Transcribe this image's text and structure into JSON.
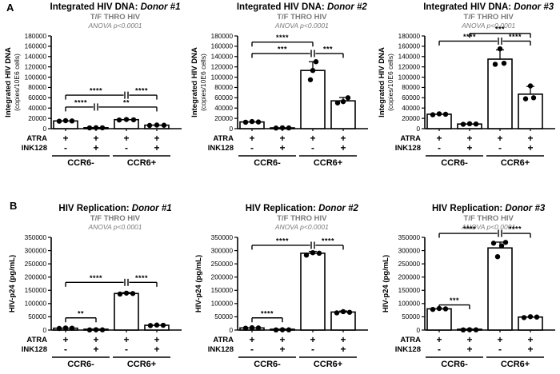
{
  "figure": {
    "panel_letters": {
      "a": "A",
      "b": "B"
    },
    "colors": {
      "bar_fill": "#ffffff",
      "bar_stroke": "#000000",
      "subtitle_gray": "#7a7a7a",
      "point_color": "#000000"
    }
  },
  "chart_data": [
    {
      "type": "bar",
      "panel": "A1",
      "title": "Integrated HIV DNA: ",
      "title_italic": "Donor #1",
      "subtitle": "T/F THRO HIV",
      "annotation": "ANOVA p<0.0001",
      "ylabel_bold": "Integrated HIV DNA",
      "ylabel_sub": "(copies/10E6 cells)",
      "ylim": [
        0,
        180000
      ],
      "ytick_step": 20000,
      "x_rows": [
        {
          "label": "ATRA",
          "values": [
            "+",
            "+",
            "+",
            "+"
          ]
        },
        {
          "label": "INK128",
          "values": [
            "-",
            "+",
            "-",
            "+"
          ]
        }
      ],
      "groups": [
        {
          "label": "CCR6-",
          "from": 0,
          "to": 1
        },
        {
          "label": "CCR6+",
          "from": 2,
          "to": 3
        }
      ],
      "values": [
        15000,
        1800,
        17500,
        6800
      ],
      "errors": [
        0,
        0,
        0,
        0
      ],
      "points": [
        [
          [
            -8,
            14500
          ],
          [
            0,
            15500
          ],
          [
            8,
            15000
          ]
        ],
        [
          [
            -8,
            1500
          ],
          [
            0,
            1900
          ],
          [
            8,
            1700
          ]
        ],
        [
          [
            -9,
            16800
          ],
          [
            0,
            17800
          ],
          [
            9,
            17200
          ]
        ],
        [
          [
            -9,
            6200
          ],
          [
            0,
            7000
          ],
          [
            9,
            6600
          ]
        ]
      ],
      "sig": [
        {
          "v": 65000,
          "segments": [
            {
              "x1": 0,
              "x2": 2,
              "label": "****"
            },
            {
              "x1": 2,
              "x2": 3,
              "label": "****"
            }
          ]
        },
        {
          "v": 42000,
          "segments": [
            {
              "x1": 0,
              "x2": 1,
              "label": "****"
            },
            {
              "x1": 1,
              "x2": 3,
              "label": "**"
            }
          ]
        }
      ]
    },
    {
      "type": "bar",
      "panel": "A2",
      "title": "Integrated HIV DNA: ",
      "title_italic": "Donor #2",
      "subtitle": "T/F THRO HIV",
      "annotation": "ANOVA p<0.0001",
      "ylabel_bold": "Integrated HIV DNA",
      "ylabel_sub": "(copies/10E6 cells)",
      "ylim": [
        0,
        180000
      ],
      "ytick_step": 20000,
      "x_rows": [
        {
          "label": "ATRA",
          "values": [
            "+",
            "+",
            "+",
            "+"
          ]
        },
        {
          "label": "INK128",
          "values": [
            "-",
            "+",
            "-",
            "+"
          ]
        }
      ],
      "groups": [
        {
          "label": "CCR6-",
          "from": 0,
          "to": 1
        },
        {
          "label": "CCR6+",
          "from": 2,
          "to": 3
        }
      ],
      "values": [
        13000,
        1500,
        113000,
        54000
      ],
      "errors": [
        0,
        0,
        17000,
        6500
      ],
      "points": [
        [
          [
            -8,
            12500
          ],
          [
            0,
            13800
          ],
          [
            8,
            13000
          ]
        ],
        [
          [
            -8,
            1200
          ],
          [
            0,
            1700
          ],
          [
            8,
            1400
          ]
        ],
        [
          [
            -3,
            95000
          ],
          [
            0,
            113000
          ],
          [
            4,
            130000
          ]
        ],
        [
          [
            -7,
            50000
          ],
          [
            0,
            52500
          ],
          [
            6,
            60000
          ]
        ]
      ],
      "sig": [
        {
          "v": 168000,
          "segments": [
            {
              "x1": 0,
              "x2": 2,
              "label": "****"
            }
          ]
        },
        {
          "v": 146000,
          "segments": [
            {
              "x1": 0,
              "x2": 2,
              "label": "***"
            },
            {
              "x1": 2,
              "x2": 3,
              "label": "***"
            }
          ]
        }
      ]
    },
    {
      "type": "bar",
      "panel": "A3",
      "title": "Integrated HIV DNA: ",
      "title_italic": "Donor #3",
      "subtitle": "T/F THRO HIV",
      "annotation": "ANOVA p<0.0001",
      "ylabel_bold": "Integrated HIV DNA",
      "ylabel_sub": "(copies/10E6 cells)",
      "ylim": [
        0,
        180000
      ],
      "ytick_step": 20000,
      "x_rows": [
        {
          "label": "ATRA",
          "values": [
            "+",
            "+",
            "+",
            "+"
          ]
        },
        {
          "label": "INK128",
          "values": [
            "-",
            "+",
            "-",
            "+"
          ]
        }
      ],
      "groups": [
        {
          "label": "CCR6-",
          "from": 0,
          "to": 1
        },
        {
          "label": "CCR6+",
          "from": 2,
          "to": 3
        }
      ],
      "values": [
        28000,
        9000,
        135000,
        67000
      ],
      "errors": [
        0,
        0,
        18000,
        15000
      ],
      "points": [
        [
          [
            -8,
            27000
          ],
          [
            0,
            28800
          ],
          [
            8,
            28000
          ]
        ],
        [
          [
            -8,
            8500
          ],
          [
            0,
            9600
          ],
          [
            8,
            9000
          ]
        ],
        [
          [
            -6,
            125000
          ],
          [
            5,
            127000
          ],
          [
            0,
            155000
          ]
        ],
        [
          [
            -6,
            58000
          ],
          [
            4,
            60000
          ],
          [
            0,
            83000
          ]
        ]
      ],
      "sig": [
        {
          "v": 185000,
          "segments": [
            {
              "x1": 1,
              "x2": 3,
              "label": "***"
            }
          ]
        },
        {
          "v": 170000,
          "segments": [
            {
              "x1": 0,
              "x2": 2,
              "label": "****"
            },
            {
              "x1": 2,
              "x2": 3,
              "label": "****"
            }
          ]
        }
      ]
    },
    {
      "type": "bar",
      "panel": "B1",
      "title": "HIV Replication: ",
      "title_italic": "Donor #1",
      "subtitle": "T/F THRO HIV",
      "annotation": "ANOVA p<0.0001",
      "ylabel_bold": "HIV-p24 (pg/mL)",
      "ylabel_sub": "",
      "ylim": [
        0,
        350000
      ],
      "ytick_step": 50000,
      "x_rows": [
        {
          "label": "ATRA",
          "values": [
            "+",
            "+",
            "+",
            "+"
          ]
        },
        {
          "label": "INK128",
          "values": [
            "-",
            "+",
            "-",
            "+"
          ]
        }
      ],
      "groups": [
        {
          "label": "CCR6-",
          "from": 0,
          "to": 1
        },
        {
          "label": "CCR6+",
          "from": 2,
          "to": 3
        }
      ],
      "values": [
        7000,
        1000,
        138000,
        18000
      ],
      "errors": [
        0,
        0,
        3500,
        0
      ],
      "points": [
        [
          [
            -8,
            6000
          ],
          [
            0,
            7800
          ],
          [
            8,
            7000
          ]
        ],
        [
          [
            -8,
            600
          ],
          [
            0,
            1300
          ],
          [
            8,
            900
          ]
        ],
        [
          [
            -8,
            136000
          ],
          [
            0,
            139500
          ],
          [
            8,
            138000
          ]
        ],
        [
          [
            -8,
            17000
          ],
          [
            0,
            19000
          ],
          [
            8,
            18000
          ]
        ]
      ],
      "sig": [
        {
          "v": 180000,
          "segments": [
            {
              "x1": 0,
              "x2": 2,
              "label": "****"
            },
            {
              "x1": 2,
              "x2": 3,
              "label": "****"
            }
          ]
        },
        {
          "v": 46000,
          "segments": [
            {
              "x1": 0,
              "x2": 1,
              "label": "**"
            }
          ]
        }
      ]
    },
    {
      "type": "bar",
      "panel": "B2",
      "title": "HIV Replication: ",
      "title_italic": "Donor #2",
      "subtitle": "T/F THRO HIV",
      "annotation": "ANOVA p<0.0001",
      "ylabel_bold": "HIV-p24 (pg/mL)",
      "ylabel_sub": "",
      "ylim": [
        0,
        350000
      ],
      "ytick_step": 50000,
      "x_rows": [
        {
          "label": "ATRA",
          "values": [
            "+",
            "+",
            "+",
            "+"
          ]
        },
        {
          "label": "INK128",
          "values": [
            "-",
            "+",
            "-",
            "+"
          ]
        }
      ],
      "groups": [
        {
          "label": "CCR6-",
          "from": 0,
          "to": 1
        },
        {
          "label": "CCR6+",
          "from": 2,
          "to": 3
        }
      ],
      "values": [
        8000,
        1000,
        290000,
        68000
      ],
      "errors": [
        0,
        0,
        7000,
        4000
      ],
      "points": [
        [
          [
            -8,
            7000
          ],
          [
            0,
            8800
          ],
          [
            8,
            8000
          ]
        ],
        [
          [
            -8,
            600
          ],
          [
            0,
            1300
          ],
          [
            8,
            900
          ]
        ],
        [
          [
            -8,
            283000
          ],
          [
            0,
            292000
          ],
          [
            8,
            290000
          ]
        ],
        [
          [
            -8,
            65000
          ],
          [
            0,
            69500
          ],
          [
            8,
            67000
          ]
        ]
      ],
      "sig": [
        {
          "v": 320000,
          "segments": [
            {
              "x1": 0,
              "x2": 2,
              "label": "****"
            },
            {
              "x1": 2,
              "x2": 3,
              "label": "****"
            }
          ]
        },
        {
          "v": 46000,
          "segments": [
            {
              "x1": 0,
              "x2": 1,
              "label": "****"
            }
          ]
        }
      ]
    },
    {
      "type": "bar",
      "panel": "B3",
      "title": "HIV Replication: ",
      "title_italic": "Donor #3",
      "subtitle": "T/F THRO HIV",
      "annotation": "ANOVA p<0.0001",
      "ylabel_bold": "HIV-p24 (pg/mL)",
      "ylabel_sub": "",
      "ylim": [
        0,
        350000
      ],
      "ytick_step": 50000,
      "x_rows": [
        {
          "label": "ATRA",
          "values": [
            "+",
            "+",
            "+",
            "+"
          ]
        },
        {
          "label": "INK128",
          "values": [
            "-",
            "+",
            "-",
            "+"
          ]
        }
      ],
      "groups": [
        {
          "label": "CCR6-",
          "from": 0,
          "to": 1
        },
        {
          "label": "CCR6+",
          "from": 2,
          "to": 3
        }
      ],
      "values": [
        80000,
        1000,
        310000,
        49000
      ],
      "errors": [
        0,
        0,
        22000,
        0
      ],
      "points": [
        [
          [
            -8,
            78000
          ],
          [
            0,
            81500
          ],
          [
            8,
            80000
          ]
        ],
        [
          [
            -8,
            600
          ],
          [
            0,
            1300
          ],
          [
            8,
            900
          ]
        ],
        [
          [
            -3,
            277000
          ],
          [
            2,
            318000
          ],
          [
            -8,
            328000
          ],
          [
            7,
            331000
          ]
        ],
        [
          [
            -8,
            47000
          ],
          [
            0,
            50500
          ],
          [
            8,
            49000
          ]
        ]
      ],
      "sig": [
        {
          "v": 365000,
          "segments": [
            {
              "x1": 0,
              "x2": 2,
              "label": "****"
            },
            {
              "x1": 2,
              "x2": 3,
              "label": "****"
            }
          ]
        },
        {
          "v": 95000,
          "segments": [
            {
              "x1": 0,
              "x2": 1,
              "label": "***"
            }
          ]
        }
      ]
    }
  ]
}
